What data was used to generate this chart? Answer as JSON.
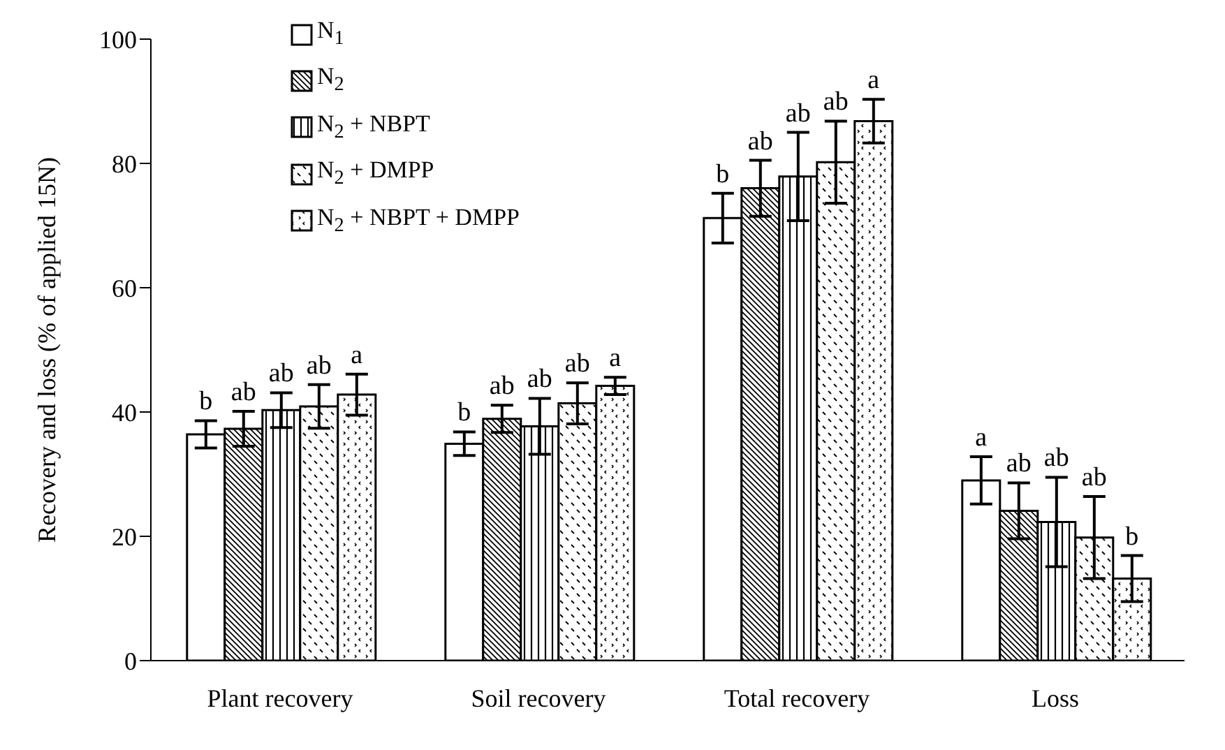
{
  "chart_data": {
    "type": "bar",
    "ylabel": "Recovery and loss (% of applied 15N)",
    "categories": [
      "Plant recovery",
      "Soil recovery",
      "Total recovery",
      "Loss"
    ],
    "ylim": [
      0,
      100
    ],
    "yticks": [
      0,
      20,
      40,
      60,
      80,
      100
    ],
    "legend": "top left",
    "series": [
      {
        "name": "N$_{1}$",
        "color": "#000000",
        "values": [
          36.4,
          34.9,
          71.2,
          29.0
        ],
        "errors": [
          2.2,
          1.9,
          4.0,
          3.8
        ],
        "value_labels": [
          "b",
          "b",
          "b",
          "a"
        ]
      },
      {
        "name": "N$_{2}$",
        "color": "#000000",
        "values": [
          37.3,
          38.9,
          76.0,
          24.1
        ],
        "errors": [
          2.8,
          2.2,
          4.5,
          4.5
        ],
        "value_labels": [
          "ab",
          "ab",
          "ab",
          "ab"
        ]
      },
      {
        "name": "N$_{2}$ + NBPT",
        "color": "#000000",
        "values": [
          40.3,
          37.7,
          77.9,
          22.3
        ],
        "errors": [
          2.8,
          4.5,
          7.1,
          7.2
        ],
        "value_labels": [
          "ab",
          "ab",
          "ab",
          "ab"
        ]
      },
      {
        "name": "N$_{2}$ + DMPP",
        "color": "#000000",
        "values": [
          40.9,
          41.4,
          80.2,
          19.8
        ],
        "errors": [
          3.5,
          3.3,
          6.6,
          6.6
        ],
        "value_labels": [
          "ab",
          "ab",
          "ab",
          "ab"
        ]
      },
      {
        "name": "N$_{2}$ + NBPT + DMPP",
        "color": "#000000",
        "values": [
          42.8,
          44.2,
          86.8,
          13.2
        ],
        "errors": [
          3.3,
          1.4,
          3.5,
          3.7
        ],
        "value_labels": [
          "a",
          "a",
          "a",
          "b"
        ]
      }
    ]
  }
}
